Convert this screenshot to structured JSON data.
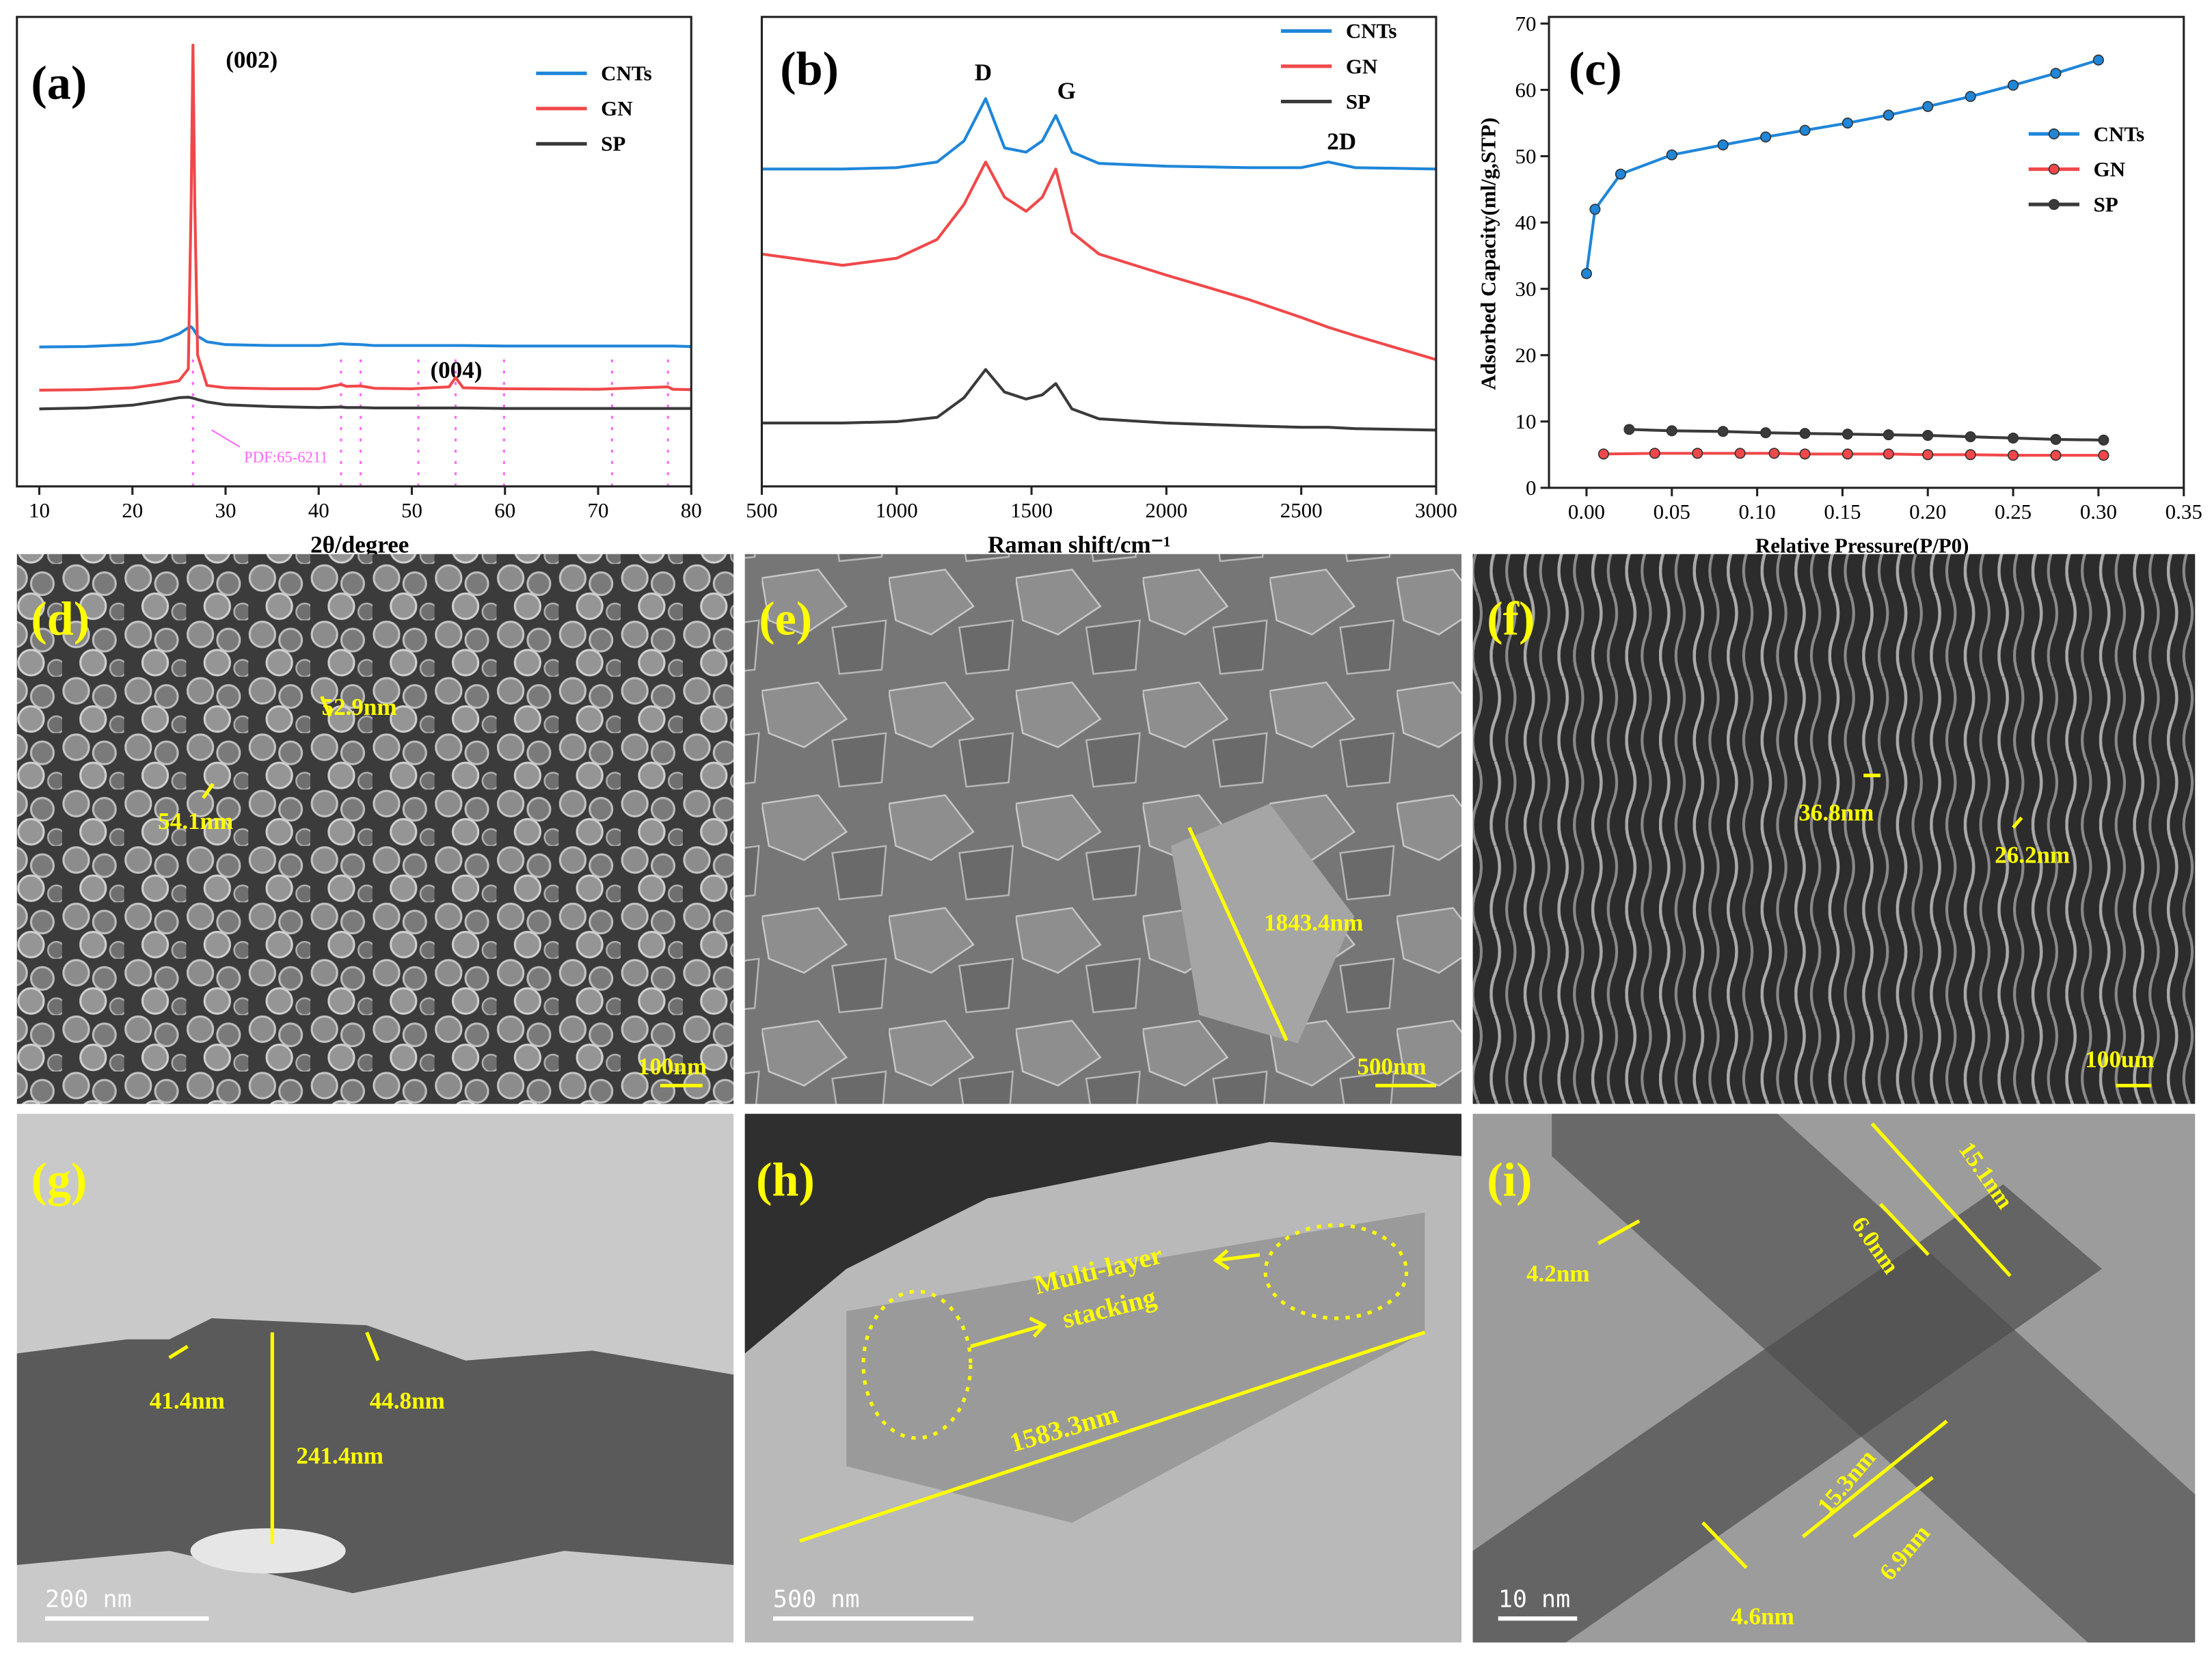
{
  "chart_data": [
    {
      "type": "line",
      "panel_label": "(a)",
      "xlabel": "2θ/degree",
      "annotations": [
        "(002)",
        "(004)",
        "PDF:65-6211"
      ],
      "x": [
        10,
        15,
        20,
        23,
        25,
        26,
        26.3,
        26.5,
        26.7,
        27,
        28,
        30,
        35,
        40,
        42.4,
        43,
        44.5,
        46,
        50,
        54,
        54.7,
        55.5,
        60,
        70,
        77.5,
        78,
        80
      ],
      "series": [
        {
          "name": "CNTs",
          "color": "#1f86d9",
          "values": [
            29.7,
            29.8,
            30.2,
            31,
            32.5,
            33.8,
            34,
            33.6,
            33,
            32,
            30.8,
            30.2,
            30,
            30,
            30.4,
            30.3,
            30.2,
            30,
            30,
            30,
            30,
            30,
            29.9,
            29.9,
            29.9,
            29.9,
            29.8
          ]
        },
        {
          "name": "GN",
          "color": "#f0484a",
          "values": [
            20.5,
            20.6,
            21,
            21.8,
            22.5,
            25,
            60,
            94,
            60,
            28,
            21.5,
            21,
            20.8,
            20.8,
            21.7,
            21.3,
            21.4,
            20.9,
            20.8,
            21.2,
            23.2,
            21,
            20.8,
            20.7,
            21.2,
            20.7,
            20.6
          ]
        },
        {
          "name": "SP",
          "color": "#3a3a3a",
          "values": [
            16.5,
            16.7,
            17.3,
            18.2,
            18.9,
            19,
            18.9,
            18.8,
            18.7,
            18.5,
            18,
            17.4,
            17,
            16.8,
            16.9,
            16.8,
            16.8,
            16.7,
            16.7,
            16.7,
            16.7,
            16.7,
            16.6,
            16.6,
            16.6,
            16.6,
            16.6
          ]
        }
      ],
      "reference_lines": [
        26.5,
        42.4,
        44.5,
        50.7,
        54.7,
        59.9,
        71.5,
        77.5
      ],
      "reference_color": "#ff66ff",
      "xlim": [
        7.6,
        80
      ],
      "xticks": [
        10,
        20,
        30,
        40,
        50,
        60,
        70,
        80
      ],
      "ylim": [
        0,
        100
      ],
      "legend": "upper right",
      "markers": false
    },
    {
      "type": "line",
      "panel_label": "(b)",
      "xlabel": "Raman shift/cm⁻¹",
      "annotations": [
        "D",
        "G",
        "2D"
      ],
      "x": [
        500,
        800,
        1000,
        1150,
        1250,
        1330,
        1400,
        1480,
        1540,
        1590,
        1650,
        1750,
        2000,
        2300,
        2500,
        2600,
        2700,
        3000
      ],
      "series": [
        {
          "name": "CNTs",
          "color": "#1f86d9",
          "values": [
            67.6,
            67.6,
            67.9,
            69.1,
            73.6,
            82.6,
            72.1,
            71.2,
            73.6,
            79.0,
            71.2,
            68.8,
            68.2,
            67.9,
            67.9,
            69.1,
            67.9,
            67.6
          ]
        },
        {
          "name": "GN",
          "color": "#f0484a",
          "values": [
            49.5,
            47.1,
            48.6,
            52.6,
            60.1,
            69.1,
            61.6,
            58.6,
            61.6,
            67.6,
            54.1,
            49.5,
            45.0,
            39.9,
            36.0,
            33.9,
            32.1,
            27.0
          ]
        },
        {
          "name": "SP",
          "color": "#3a3a3a",
          "values": [
            13.5,
            13.5,
            13.8,
            14.7,
            18.9,
            24.9,
            20.1,
            18.6,
            19.5,
            21.9,
            16.5,
            14.4,
            13.5,
            12.9,
            12.6,
            12.6,
            12.3,
            12.0
          ]
        }
      ],
      "xlim": [
        500,
        3000
      ],
      "xticks": [
        500,
        1000,
        1500,
        2000,
        2500,
        3000
      ],
      "ylim": [
        0,
        100
      ],
      "legend": "upper right",
      "markers": false
    },
    {
      "type": "line",
      "panel_label": "(c)",
      "xlabel": "Relative Pressure(P/P0)",
      "ylabel": "Adsorbed Capacity(ml/g,STP)",
      "series": [
        {
          "name": "CNTs",
          "color": "#1f86d9",
          "x": [
            0.0,
            0.005,
            0.02,
            0.05,
            0.08,
            0.105,
            0.128,
            0.153,
            0.177,
            0.2,
            0.225,
            0.25,
            0.275,
            0.3
          ],
          "values": [
            32.3,
            42,
            47.3,
            50.2,
            51.7,
            52.9,
            53.9,
            55,
            56.2,
            57.5,
            59,
            60.7,
            62.5,
            64.5
          ]
        },
        {
          "name": "GN",
          "color": "#f0484a",
          "x": [
            0.01,
            0.04,
            0.065,
            0.09,
            0.11,
            0.128,
            0.153,
            0.177,
            0.2,
            0.225,
            0.25,
            0.275,
            0.303
          ],
          "values": [
            5.1,
            5.2,
            5.2,
            5.2,
            5.2,
            5.1,
            5.1,
            5.1,
            5.0,
            5.0,
            4.9,
            4.9,
            4.9
          ]
        },
        {
          "name": "SP",
          "color": "#3a3a3a",
          "x": [
            0.025,
            0.05,
            0.08,
            0.105,
            0.128,
            0.153,
            0.177,
            0.2,
            0.225,
            0.25,
            0.275,
            0.303
          ],
          "values": [
            8.8,
            8.6,
            8.5,
            8.3,
            8.2,
            8.1,
            8.0,
            7.9,
            7.7,
            7.5,
            7.3,
            7.2
          ]
        }
      ],
      "xlim": [
        -0.022,
        0.35
      ],
      "xticks": [
        {
          "value": 0,
          "label": "0.00"
        },
        {
          "value": 0.05,
          "label": "0.05"
        },
        {
          "value": 0.1,
          "label": "0.10"
        },
        {
          "value": 0.15,
          "label": "0.15"
        },
        {
          "value": 0.2,
          "label": "0.20"
        },
        {
          "value": 0.25,
          "label": "0.25"
        },
        {
          "value": 0.3,
          "label": "0.30"
        },
        {
          "value": 0.35,
          "label": "0.35"
        }
      ],
      "ylim": [
        0,
        71
      ],
      "yticks": [
        0,
        10,
        20,
        30,
        40,
        50,
        60,
        70
      ],
      "legend": "center right",
      "markers": true
    }
  ],
  "images": [
    {
      "label": "(d)",
      "annotations": [
        "52.9nm",
        "54.1nm"
      ],
      "scale_bar": "100nm"
    },
    {
      "label": "(e)",
      "annotations": [
        "1843.4nm"
      ],
      "scale_bar": "500nm"
    },
    {
      "label": "(f)",
      "annotations": [
        "36.8nm",
        "26.2nm"
      ],
      "scale_bar": "100um"
    },
    {
      "label": "(g)",
      "annotations": [
        "41.4nm",
        "44.8nm",
        "241.4nm"
      ],
      "scale_bar": "200 nm"
    },
    {
      "label": "(h)",
      "annotations": [
        "Multi-layer",
        "stacking",
        "1583.3nm"
      ],
      "scale_bar": "500 nm"
    },
    {
      "label": "(i)",
      "annotations": [
        "4.2nm",
        "15.1nm",
        "6.0nm",
        "15.3nm",
        "6.9nm",
        "4.6nm"
      ],
      "scale_bar": "10 nm"
    }
  ]
}
